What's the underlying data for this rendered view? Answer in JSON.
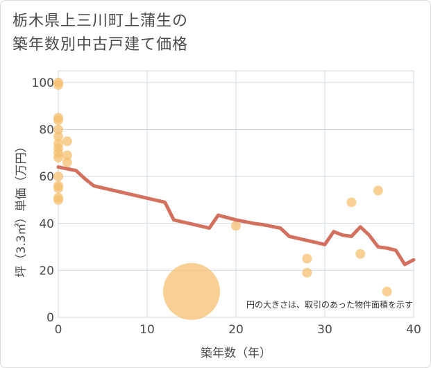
{
  "chart_data": {
    "type": "scatter",
    "title_lines": [
      "栃木県上三川町上蒲生の",
      "築年数別中古戸建て価格"
    ],
    "xlabel": "築年数（年）",
    "ylabel": "坪（3.3㎡）単価（万円）",
    "xlim": [
      0,
      40
    ],
    "ylim": [
      0,
      105
    ],
    "x_ticks": [
      0,
      10,
      20,
      30,
      40
    ],
    "y_ticks": [
      0,
      20,
      40,
      60,
      80,
      100
    ],
    "note": "円の大きさは、取引のあった物件面積を示す",
    "colors": {
      "bubble": "#f5c06f",
      "line": "#d4705e",
      "grid": "#cfd9e3"
    },
    "scatter_points": [
      {
        "x": 0,
        "y": 100,
        "size": 1
      },
      {
        "x": 0,
        "y": 99,
        "size": 1
      },
      {
        "x": 0,
        "y": 85,
        "size": 1
      },
      {
        "x": 0,
        "y": 84,
        "size": 1
      },
      {
        "x": 0,
        "y": 80,
        "size": 1
      },
      {
        "x": 0,
        "y": 77,
        "size": 1
      },
      {
        "x": 0,
        "y": 74,
        "size": 1
      },
      {
        "x": 0,
        "y": 72,
        "size": 1
      },
      {
        "x": 0,
        "y": 70,
        "size": 1
      },
      {
        "x": 0,
        "y": 68,
        "size": 1
      },
      {
        "x": 0,
        "y": 60,
        "size": 1
      },
      {
        "x": 0,
        "y": 56,
        "size": 1
      },
      {
        "x": 0,
        "y": 55,
        "size": 1
      },
      {
        "x": 0,
        "y": 51,
        "size": 1
      },
      {
        "x": 0,
        "y": 50,
        "size": 1
      },
      {
        "x": 1,
        "y": 75,
        "size": 1
      },
      {
        "x": 1,
        "y": 69,
        "size": 1
      },
      {
        "x": 1,
        "y": 66,
        "size": 1
      },
      {
        "x": 15,
        "y": 11,
        "size": 6
      },
      {
        "x": 20,
        "y": 39,
        "size": 1
      },
      {
        "x": 28,
        "y": 25,
        "size": 1
      },
      {
        "x": 28,
        "y": 19,
        "size": 1
      },
      {
        "x": 33,
        "y": 49,
        "size": 1
      },
      {
        "x": 34,
        "y": 27,
        "size": 1
      },
      {
        "x": 36,
        "y": 54,
        "size": 1
      },
      {
        "x": 37,
        "y": 11,
        "size": 1
      }
    ],
    "trend_line": [
      {
        "x": 0,
        "y": 64
      },
      {
        "x": 2,
        "y": 62.5
      },
      {
        "x": 3,
        "y": 59
      },
      {
        "x": 4,
        "y": 56
      },
      {
        "x": 12,
        "y": 49
      },
      {
        "x": 13,
        "y": 41.5
      },
      {
        "x": 17,
        "y": 38
      },
      {
        "x": 18,
        "y": 43.5
      },
      {
        "x": 20,
        "y": 41.5
      },
      {
        "x": 22,
        "y": 40
      },
      {
        "x": 23,
        "y": 39.5
      },
      {
        "x": 25,
        "y": 38
      },
      {
        "x": 26,
        "y": 34.5
      },
      {
        "x": 30,
        "y": 31
      },
      {
        "x": 31,
        "y": 36.5
      },
      {
        "x": 32,
        "y": 35
      },
      {
        "x": 33,
        "y": 34.5
      },
      {
        "x": 34,
        "y": 38.5
      },
      {
        "x": 35,
        "y": 35
      },
      {
        "x": 36,
        "y": 30
      },
      {
        "x": 37,
        "y": 29.5
      },
      {
        "x": 38,
        "y": 28.5
      },
      {
        "x": 39,
        "y": 22.5
      },
      {
        "x": 40,
        "y": 24.5
      }
    ]
  }
}
